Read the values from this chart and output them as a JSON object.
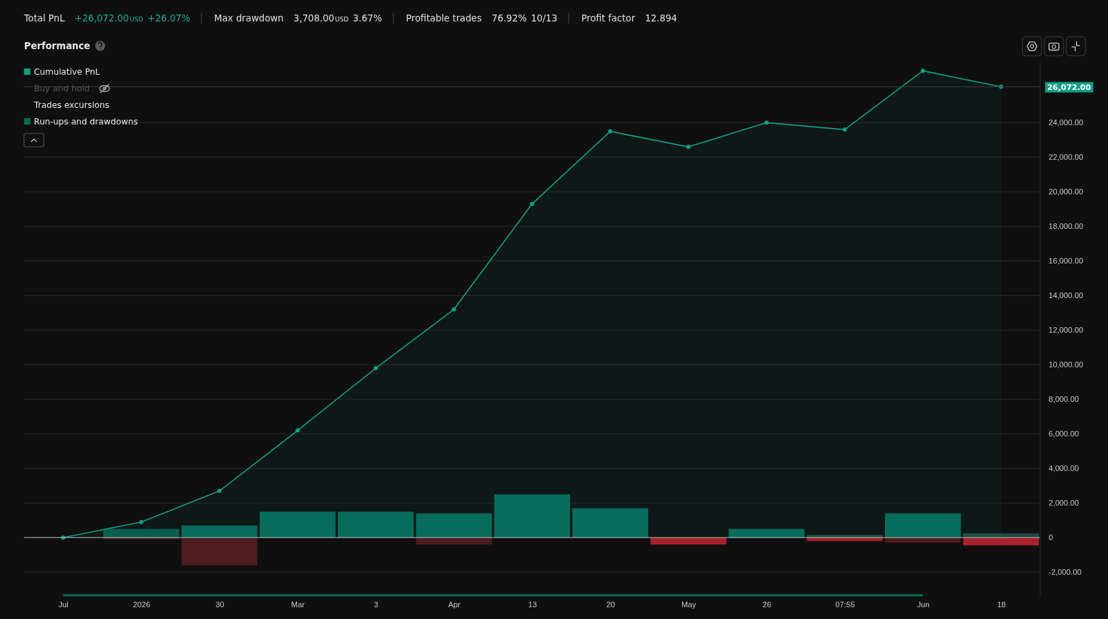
{
  "chart_data": {
    "type": "bar",
    "title": "Performance",
    "categories": [
      "Jul",
      "2026",
      "30",
      "Mar",
      "3",
      "Apr",
      "13",
      "20",
      "May",
      "26",
      "07:55",
      "Jun",
      "18"
    ],
    "series": [
      {
        "name": "Cumulative PnL",
        "type": "area",
        "color": "#129f84",
        "values": [
          0,
          900,
          2700,
          6200,
          9800,
          13200,
          19300,
          23500,
          22600,
          24000,
          23600,
          27000,
          26072
        ]
      },
      {
        "name": "Run-ups and drawdowns",
        "color": "#07695a",
        "colors": [
          null,
          "#0b5a4c",
          "#07695a",
          "#07695a",
          "#07695a",
          "#07695a",
          "#07695a",
          "#07695a",
          "#07695a",
          "#07695a",
          "#1f4a41",
          "#07695a",
          "#1f4a41"
        ],
        "values": [
          null,
          500,
          700,
          1500,
          1500,
          1400,
          2500,
          1700,
          0,
          500,
          150,
          1400,
          250
        ]
      },
      {
        "colors": [
          null,
          "#4c1c1f",
          "#4c1c1f",
          "#4c1c1f",
          null,
          "#4c1c1f",
          null,
          "#4c1c1f",
          "#a8222c",
          "#4c1c1f",
          "#a8222c",
          "#4c1c1f",
          "#a8222c"
        ],
        "values": [
          null,
          -100,
          -1600,
          0,
          null,
          -400,
          null,
          0,
          -400,
          0,
          -200,
          -300,
          -450
        ]
      }
    ],
    "ylim": [
      -3400,
      27500
    ],
    "yticks": [
      {
        "value": -2000,
        "label": "-2,000.00"
      },
      0,
      {
        "value": 2000,
        "label": "2,000.00"
      },
      {
        "value": 4000,
        "label": "4,000.00"
      },
      {
        "value": 6000,
        "label": "6,000.00"
      },
      {
        "value": 8000,
        "label": "8,000.00"
      },
      {
        "value": 10000,
        "label": "10,000.00"
      },
      {
        "value": 12000,
        "label": "12,000.00"
      },
      {
        "value": 14000,
        "label": "14,000.00"
      },
      {
        "value": 16000,
        "label": "16,000.00"
      },
      {
        "value": 18000,
        "label": "18,000.00"
      },
      {
        "value": 20000,
        "label": "20,000.00"
      },
      {
        "value": 22000,
        "label": "22,000.00"
      },
      {
        "value": 24000,
        "label": "24,000.00"
      }
    ],
    "grid": "y",
    "marker": "circle",
    "legend": "top left",
    "ref_lines": [
      {
        "axis": "y",
        "value": 26072,
        "label": "26,072.00"
      }
    ],
    "annotations": [
      "Total PnL",
      "+26,072.00",
      "USD",
      "+26.07%",
      "Max drawdown",
      "3,708.00",
      "USD",
      "3.67%",
      "Profitable trades",
      "76.92%",
      "10/13",
      "Profit factor",
      "12.894",
      "Buy and hold",
      "Trades excursions"
    ]
  }
}
